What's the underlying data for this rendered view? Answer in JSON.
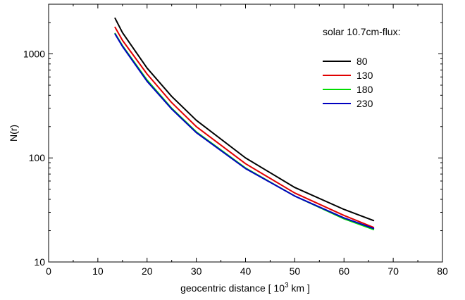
{
  "chart_data": {
    "type": "line",
    "title": "",
    "xlabel_parts": [
      "geocentric distance [ 10",
      "3",
      " km ]"
    ],
    "ylabel": "N(r)",
    "xlim": [
      0,
      80
    ],
    "ylim": [
      10,
      3000
    ],
    "yscale": "log",
    "grid": false,
    "legend_position": "top-right",
    "legend_title": "solar 10.7cm-flux:",
    "x_ticks": [
      0,
      10,
      20,
      30,
      40,
      50,
      60,
      70,
      80
    ],
    "x_tick_labels": [
      "0",
      "10",
      "20",
      "30",
      "40",
      "50",
      "60",
      "70",
      "80"
    ],
    "y_ticks": [
      10,
      100,
      1000
    ],
    "y_tick_labels": [
      "10",
      "100",
      "1000"
    ],
    "x": [
      13.5,
      15,
      20,
      25,
      30,
      40,
      50,
      60,
      66
    ],
    "series": [
      {
        "name": "80",
        "color": "#000000",
        "values": [
          2200,
          1600,
          730,
          390,
          230,
          100,
          52,
          32,
          25
        ]
      },
      {
        "name": "130",
        "color": "#e00000",
        "values": [
          1800,
          1350,
          640,
          340,
          200,
          88,
          46,
          28,
          21.5
        ]
      },
      {
        "name": "180",
        "color": "#00dd00",
        "values": [
          1570,
          1200,
          560,
          300,
          178,
          80,
          43,
          26,
          20.5
        ]
      },
      {
        "name": "230",
        "color": "#0000c0",
        "values": [
          1550,
          1180,
          545,
          295,
          175,
          79,
          43,
          26.5,
          21
        ]
      }
    ]
  }
}
